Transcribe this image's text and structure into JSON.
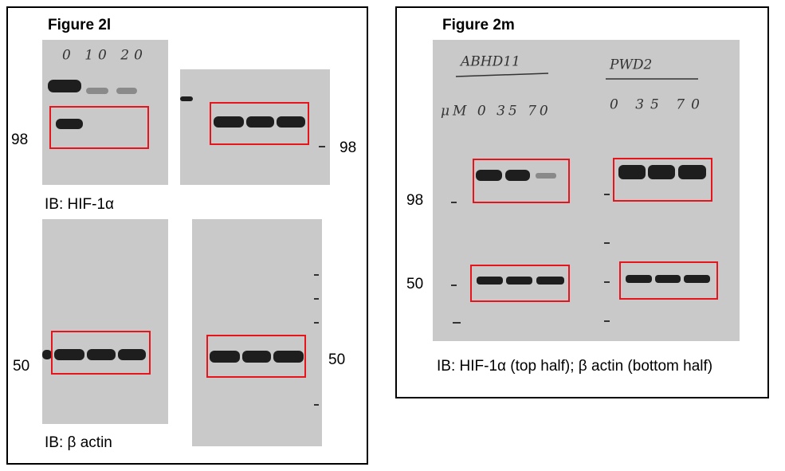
{
  "figure_2l": {
    "title": "Figure 2l",
    "lane_labels": "0 10 20",
    "markers": [
      "98",
      "98",
      "50",
      "50"
    ],
    "captions": [
      "IB: HIF-1α",
      "IB: β actin"
    ]
  },
  "figure_2m": {
    "title": "Figure 2m",
    "sample_labels": [
      "ABHD11",
      "PWD2"
    ],
    "lane_labels": [
      "μM 0 35 70",
      "0 35 70"
    ],
    "markers": [
      "98",
      "50"
    ],
    "caption": "IB: HIF-1α (top half); β actin (bottom half)"
  }
}
